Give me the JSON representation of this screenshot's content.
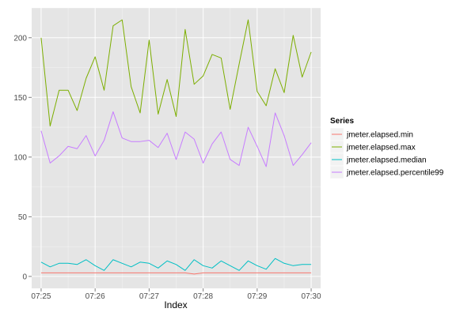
{
  "chart_data": {
    "type": "line",
    "xlabel": "Index",
    "ylabel": "",
    "xlim": [
      "07:25",
      "07:30"
    ],
    "ylim": [
      -10,
      225
    ],
    "x_ticks": [
      "07:25",
      "07:26",
      "07:27",
      "07:28",
      "07:29",
      "07:30"
    ],
    "y_ticks": [
      0,
      50,
      100,
      150,
      200
    ],
    "grid": true,
    "panel_background": "#e5e5e5",
    "grid_color": "#ffffff",
    "legend": {
      "title": "Series",
      "position": "right"
    },
    "x": [
      "07:25:00",
      "07:25:10",
      "07:25:20",
      "07:25:30",
      "07:25:40",
      "07:25:50",
      "07:26:00",
      "07:26:10",
      "07:26:20",
      "07:26:30",
      "07:26:40",
      "07:26:50",
      "07:27:00",
      "07:27:10",
      "07:27:20",
      "07:27:30",
      "07:27:40",
      "07:27:50",
      "07:28:00",
      "07:28:10",
      "07:28:20",
      "07:28:30",
      "07:28:40",
      "07:28:50",
      "07:29:00",
      "07:29:10",
      "07:29:20",
      "07:29:30",
      "07:29:40",
      "07:29:50",
      "07:30:00"
    ],
    "series": [
      {
        "name": "jmeter.elapsed.min",
        "color": "#F8766D",
        "values": [
          3,
          3,
          3,
          3,
          3,
          3,
          3,
          3,
          3,
          3,
          3,
          3,
          3,
          3,
          3,
          3,
          3,
          2,
          3,
          3,
          3,
          3,
          3,
          3,
          3,
          3,
          3,
          3,
          3,
          3,
          3
        ]
      },
      {
        "name": "jmeter.elapsed.max",
        "color": "#7CAE00",
        "values": [
          200,
          126,
          156,
          156,
          139,
          166,
          184,
          156,
          210,
          215,
          159,
          137,
          198,
          136,
          165,
          134,
          207,
          161,
          168,
          186,
          183,
          140,
          178,
          215,
          155,
          143,
          174,
          154,
          202,
          167,
          188
        ]
      },
      {
        "name": "jmeter.elapsed.median",
        "color": "#00BFC4",
        "values": [
          12,
          8,
          11,
          11,
          10,
          14,
          9,
          5,
          14,
          11,
          8,
          12,
          11,
          7,
          13,
          10,
          5,
          14,
          9,
          7,
          13,
          9,
          5,
          13,
          9,
          6,
          15,
          11,
          9,
          10,
          10
        ]
      },
      {
        "name": "jmeter.elapsed.percentile99",
        "color": "#C77CFF",
        "values": [
          122,
          95,
          101,
          109,
          107,
          118,
          101,
          114,
          138,
          116,
          113,
          113,
          114,
          108,
          120,
          98,
          121,
          115,
          95,
          111,
          121,
          98,
          93,
          125,
          109,
          92,
          137,
          118,
          93,
          102,
          112
        ]
      }
    ]
  }
}
